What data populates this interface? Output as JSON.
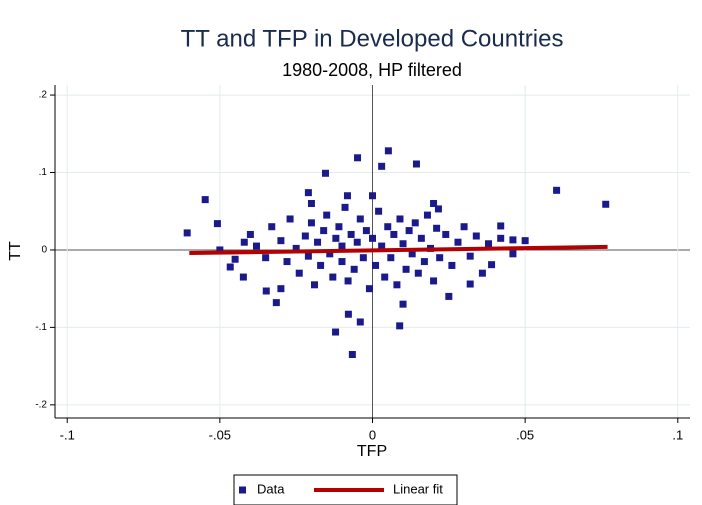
{
  "chart_data": {
    "type": "scatter",
    "title": "TT and TFP in Developed Countries",
    "subtitle": "1980-2008, HP filtered",
    "x_label": "TFP",
    "y_label": "TT",
    "xlim": [
      -0.104,
      0.104
    ],
    "ylim": [
      -0.217,
      0.213
    ],
    "xticks": [
      {
        "value": -0.1,
        "label": "-.1"
      },
      {
        "value": -0.05,
        "label": "-.05"
      },
      0,
      {
        "value": 0.05,
        "label": ".05"
      },
      {
        "value": 0.1,
        "label": ".1"
      }
    ],
    "yticks": [
      {
        "value": -0.2,
        "label": "-.2"
      },
      {
        "value": -0.1,
        "label": "-.1"
      },
      0,
      {
        "value": 0.1,
        "label": ".1"
      },
      {
        "value": 0.2,
        "label": ".2"
      }
    ],
    "grid": true,
    "series": [
      {
        "name": "Data",
        "color": "#1a1a8c",
        "x": [
          -0.0049,
          0.0052,
          0.003,
          0.0144,
          -0.0154,
          0.0603,
          0.0764,
          -0.0548,
          -0.0607,
          -0.0508,
          -0.0066,
          -0.0121,
          0.0089,
          -0.0315,
          -0.0466,
          -0.0423,
          -0.0348,
          -0.021,
          -0.0082,
          -0.0079,
          -0.004,
          0.032,
          0.039,
          0.046,
          0.042,
          0.0216,
          -0.04,
          -0.038,
          -0.035,
          -0.033,
          -0.03,
          -0.028,
          -0.027,
          -0.025,
          -0.024,
          -0.022,
          -0.021,
          -0.02,
          -0.019,
          -0.018,
          -0.017,
          -0.016,
          -0.015,
          -0.014,
          -0.013,
          -0.012,
          -0.011,
          -0.01,
          -0.01,
          -0.009,
          -0.008,
          -0.007,
          -0.006,
          -0.005,
          -0.004,
          -0.003,
          -0.002,
          -0.001,
          0,
          0.001,
          0.002,
          0.003,
          0.004,
          0.005,
          0.006,
          0.007,
          0.008,
          0.009,
          0.01,
          0.011,
          0.012,
          0.013,
          0.014,
          0.015,
          0.016,
          0.017,
          0.018,
          0.019,
          0.02,
          0.021,
          0.022,
          0.024,
          0.026,
          0.028,
          0.03,
          0.032,
          0.034,
          0.036,
          0.038,
          0.042,
          0.046,
          0.05,
          -0.045,
          -0.042,
          -0.05,
          -0.03,
          0.025,
          0.02,
          -0.02,
          0,
          0.01
        ],
        "values": [
          0.119,
          0.128,
          0.108,
          0.111,
          0.099,
          0.077,
          0.059,
          0.065,
          0.022,
          0.034,
          -0.135,
          -0.106,
          -0.098,
          -0.068,
          -0.022,
          -0.035,
          -0.053,
          0.074,
          0.07,
          -0.083,
          -0.093,
          -0.044,
          -0.019,
          0.013,
          0.031,
          0.053,
          0.02,
          0.005,
          -0.01,
          0.03,
          0.012,
          -0.015,
          0.04,
          0.002,
          -0.03,
          0.018,
          -0.008,
          0.035,
          -0.045,
          0.01,
          -0.02,
          0.025,
          0.045,
          -0.005,
          -0.035,
          0.015,
          0.03,
          -0.015,
          0.005,
          0.055,
          -0.04,
          0.02,
          -0.025,
          0.01,
          0.04,
          -0.01,
          0.025,
          -0.05,
          0.015,
          -0.02,
          0.05,
          0.005,
          -0.035,
          0.03,
          -0.01,
          0.02,
          -0.045,
          0.04,
          0.008,
          -0.025,
          0.025,
          -0.005,
          0.035,
          -0.03,
          0.015,
          -0.015,
          0.045,
          0.002,
          -0.04,
          0.028,
          -0.01,
          0.02,
          -0.02,
          0.01,
          0.03,
          -0.008,
          0.018,
          -0.03,
          0.008,
          0.015,
          -0.005,
          0.012,
          -0.012,
          0.01,
          0,
          -0.05,
          -0.06,
          0.06,
          0.06,
          0.07,
          -0.07
        ]
      },
      {
        "name": "Linear fit",
        "color": "#b30000",
        "x": [
          -0.06,
          0.077
        ],
        "values": [
          -0.004,
          0.004
        ]
      }
    ]
  }
}
